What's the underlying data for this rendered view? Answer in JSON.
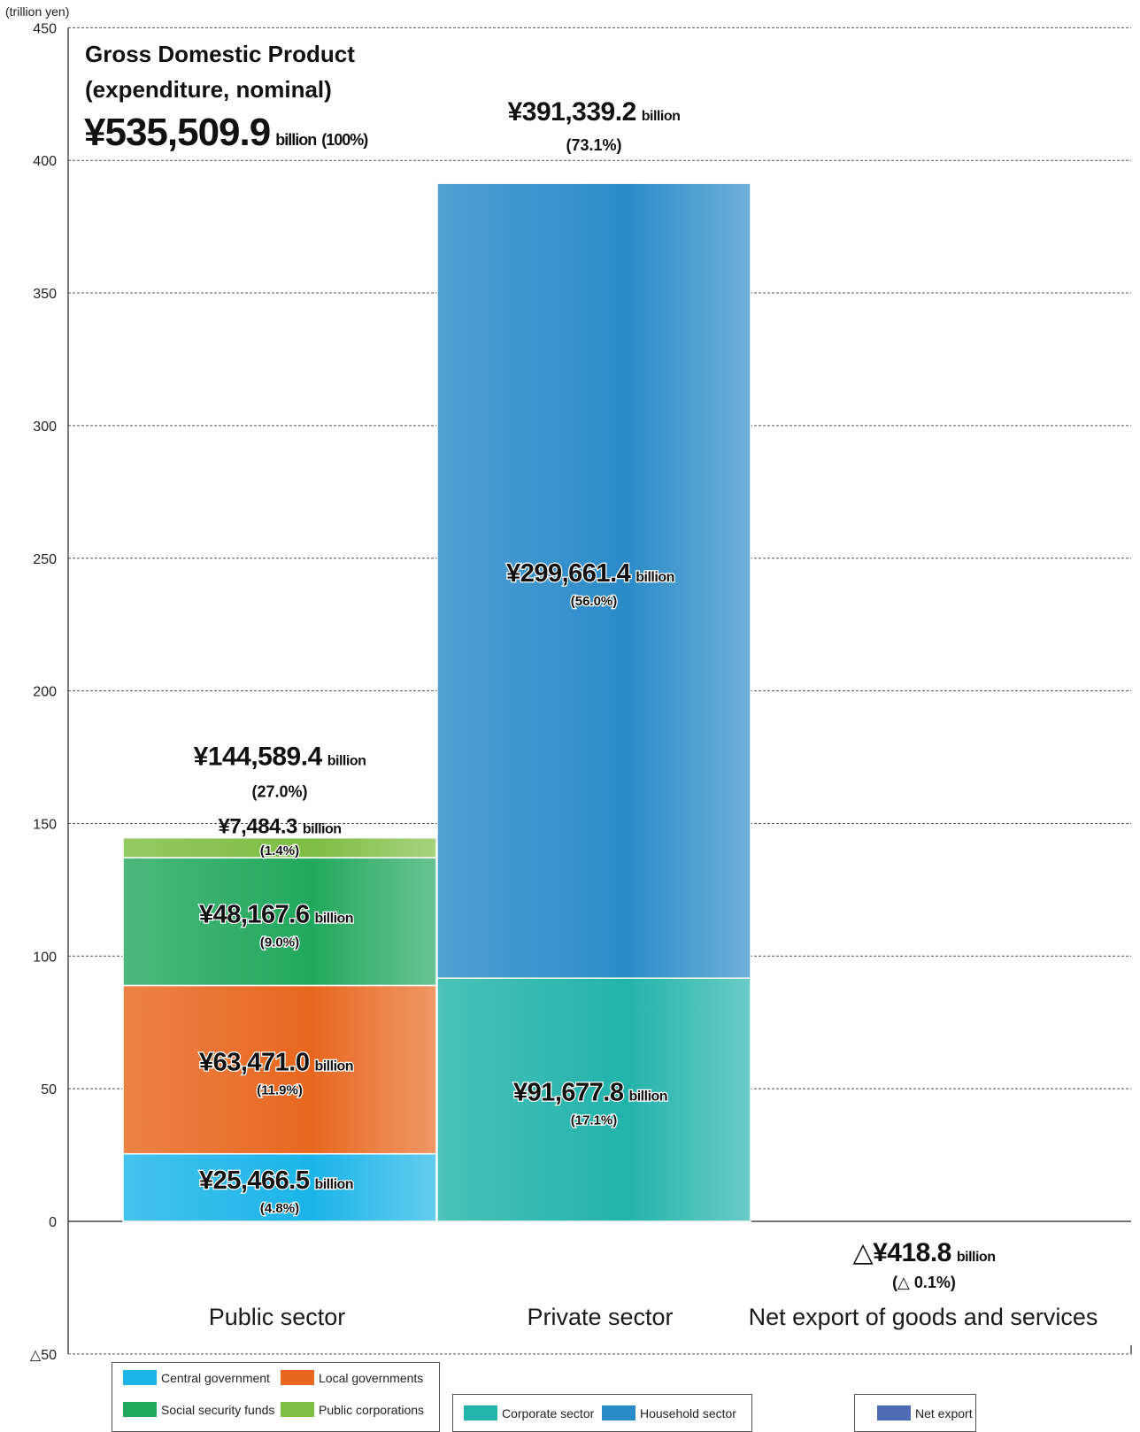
{
  "chart_data": {
    "type": "bar",
    "stacked": true,
    "unit_label": "(trillion yen)",
    "ylim": [
      -50,
      450
    ],
    "yticks": [
      -50,
      0,
      50,
      100,
      150,
      200,
      250,
      300,
      350,
      400,
      450
    ],
    "ytick_labels": [
      "△50",
      "0",
      "50",
      "100",
      "150",
      "200",
      "250",
      "300",
      "350",
      "400",
      "450"
    ],
    "grid": true,
    "categories": [
      "Public sector",
      "Private sector",
      "Net export of goods and services"
    ],
    "series": [
      {
        "name": "Central government",
        "category": "Public sector",
        "value": 25.4665,
        "color": "#1bb4e8",
        "amount": "¥25,466.5",
        "unit": "billion",
        "share": "(4.8%)"
      },
      {
        "name": "Local governments",
        "category": "Public sector",
        "value": 63.471,
        "color": "#e8671f",
        "amount": "¥63,471.0",
        "unit": "billion",
        "share": "(11.9%)"
      },
      {
        "name": "Social security funds",
        "category": "Public sector",
        "value": 48.1676,
        "color": "#22a85e",
        "amount": "¥48,167.6",
        "unit": "billion",
        "share": "(9.0%)"
      },
      {
        "name": "Public corporations",
        "category": "Public sector",
        "value": 7.4843,
        "color": "#7dbd42",
        "amount": "¥7,484.3",
        "unit": "billion",
        "share": "(1.4%)"
      },
      {
        "name": "Corporate sector",
        "category": "Private sector",
        "value": 91.6778,
        "color": "#22b3ab",
        "amount": "¥91,677.8",
        "unit": "billion",
        "share": "(17.1%)"
      },
      {
        "name": "Household sector",
        "category": "Private sector",
        "value": 299.6614,
        "color": "#2a8bc9",
        "amount": "¥299,661.4",
        "unit": "billion",
        "share": "(56.0%)"
      },
      {
        "name": "Net export",
        "category": "Net export of goods and services",
        "value": -0.4188,
        "color": "#4e6cb3",
        "amount": "",
        "unit": "",
        "share": ""
      }
    ],
    "totals": [
      {
        "category": "Public sector",
        "value": 144.5894,
        "amount": "¥144,589.4",
        "unit": "billion",
        "share": "(27.0%)"
      },
      {
        "category": "Private sector",
        "value": 391.3392,
        "amount": "¥391,339.2",
        "unit": "billion",
        "share": "(73.1%)"
      },
      {
        "category": "Net export of goods and services",
        "value": -0.4188,
        "amount": "△¥418.8",
        "unit": "billion",
        "share": "(△ 0.1%)"
      }
    ],
    "gdp_box": {
      "line1": "Gross Domestic Product",
      "line2": "(expenditure, nominal)",
      "amount": "¥535,509.9",
      "unit": "billion",
      "share": "(100%)"
    },
    "legends": [
      {
        "items": [
          "Central government",
          "Local governments",
          "Social security funds",
          "Public corporations"
        ]
      },
      {
        "items": [
          "Corporate sector",
          "Household sector"
        ]
      },
      {
        "items": [
          "Net export"
        ]
      }
    ]
  }
}
